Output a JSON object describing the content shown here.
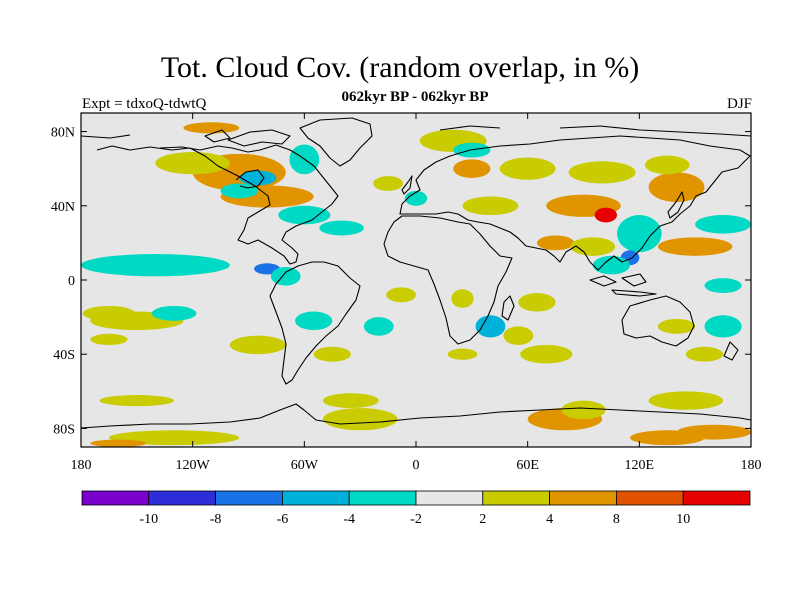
{
  "title": "Tot. Cloud Cov. (random overlap, in %)",
  "subtitle": "062kyr BP - 062kyr BP",
  "left_label": "Expt = tdxoQ-tdwtQ",
  "right_label": "DJF",
  "colors": {
    "background": "#e6e6e6",
    "coast": "#000000",
    "levels": [
      "#7a00cc",
      "#2e2ed9",
      "#1a73e6",
      "#00b2d9",
      "#00d9c3",
      "#e6e6e6",
      "#c9cc00",
      "#e09500",
      "#e05200",
      "#e60000"
    ]
  },
  "chart_data": {
    "type": "heatmap",
    "title": "Tot. Cloud Cov. (random overlap, in %)",
    "x_ticks": [
      "180",
      "120W",
      "60W",
      "0",
      "60E",
      "120E",
      "180"
    ],
    "x_values": [
      -180,
      -120,
      -60,
      0,
      60,
      120,
      180
    ],
    "y_ticks": [
      "80N",
      "40N",
      "0",
      "40S",
      "80S"
    ],
    "y_values": [
      80,
      40,
      0,
      -40,
      -80
    ],
    "lon_range": [
      -180,
      180
    ],
    "lat_range": [
      -90,
      90
    ],
    "colorbar": {
      "labels": [
        "-10",
        "-8",
        "-6",
        "-4",
        "-2",
        "2",
        "4",
        "8",
        "10"
      ],
      "boundaries": [
        -10,
        -8,
        -6,
        -4,
        -2,
        2,
        4,
        8,
        10
      ],
      "bins": 10
    },
    "regions": [
      {
        "lon": -140,
        "lat": 8,
        "rx": 18,
        "ry": 3,
        "value": -6
      },
      {
        "lon": -140,
        "lat": 8,
        "rx": 40,
        "ry": 6,
        "value": -3
      },
      {
        "lon": -165,
        "lat": -18,
        "rx": 14,
        "ry": 4,
        "value": 3
      },
      {
        "lon": -150,
        "lat": -22,
        "rx": 25,
        "ry": 5,
        "value": 3
      },
      {
        "lon": -130,
        "lat": -18,
        "rx": 12,
        "ry": 4,
        "value": -3
      },
      {
        "lon": -165,
        "lat": -32,
        "rx": 10,
        "ry": 3,
        "value": 3
      },
      {
        "lon": -95,
        "lat": 58,
        "rx": 25,
        "ry": 10,
        "value": 5
      },
      {
        "lon": -80,
        "lat": 45,
        "rx": 25,
        "ry": 6,
        "value": 6
      },
      {
        "lon": -120,
        "lat": 63,
        "rx": 20,
        "ry": 6,
        "value": 3
      },
      {
        "lon": -85,
        "lat": 55,
        "rx": 10,
        "ry": 4,
        "value": -5
      },
      {
        "lon": -110,
        "lat": 82,
        "rx": 15,
        "ry": 3,
        "value": 6
      },
      {
        "lon": -60,
        "lat": 65,
        "rx": 8,
        "ry": 8,
        "value": -4
      },
      {
        "lon": -95,
        "lat": 48,
        "rx": 10,
        "ry": 4,
        "value": -3
      },
      {
        "lon": -60,
        "lat": 35,
        "rx": 14,
        "ry": 5,
        "value": -3
      },
      {
        "lon": -40,
        "lat": 28,
        "rx": 12,
        "ry": 4,
        "value": -3
      },
      {
        "lon": -80,
        "lat": 6,
        "rx": 7,
        "ry": 3,
        "value": -8
      },
      {
        "lon": -70,
        "lat": 2,
        "rx": 8,
        "ry": 5,
        "value": -4
      },
      {
        "lon": -55,
        "lat": -22,
        "rx": 10,
        "ry": 5,
        "value": -3
      },
      {
        "lon": -85,
        "lat": -35,
        "rx": 15,
        "ry": 5,
        "value": 3
      },
      {
        "lon": -45,
        "lat": -40,
        "rx": 10,
        "ry": 4,
        "value": 3
      },
      {
        "lon": -150,
        "lat": -65,
        "rx": 20,
        "ry": 3,
        "value": 3
      },
      {
        "lon": -130,
        "lat": -85,
        "rx": 35,
        "ry": 4,
        "value": 3
      },
      {
        "lon": -160,
        "lat": -88,
        "rx": 15,
        "ry": 2,
        "value": 5
      },
      {
        "lon": -15,
        "lat": 52,
        "rx": 8,
        "ry": 4,
        "value": 3
      },
      {
        "lon": 0,
        "lat": 44,
        "rx": 6,
        "ry": 4,
        "value": -3
      },
      {
        "lon": 20,
        "lat": 75,
        "rx": 18,
        "ry": 6,
        "value": 3
      },
      {
        "lon": 30,
        "lat": 60,
        "rx": 10,
        "ry": 5,
        "value": 5
      },
      {
        "lon": 40,
        "lat": 40,
        "rx": 15,
        "ry": 5,
        "value": 3
      },
      {
        "lon": -8,
        "lat": -8,
        "rx": 8,
        "ry": 4,
        "value": 3
      },
      {
        "lon": -20,
        "lat": -25,
        "rx": 8,
        "ry": 5,
        "value": -3
      },
      {
        "lon": -35,
        "lat": -65,
        "rx": 15,
        "ry": 4,
        "value": 3
      },
      {
        "lon": -30,
        "lat": -75,
        "rx": 20,
        "ry": 6,
        "value": 3
      },
      {
        "lon": 25,
        "lat": -10,
        "rx": 6,
        "ry": 5,
        "value": 3
      },
      {
        "lon": 25,
        "lat": -40,
        "rx": 8,
        "ry": 3,
        "value": 3
      },
      {
        "lon": 40,
        "lat": -25,
        "rx": 8,
        "ry": 6,
        "value": -5
      },
      {
        "lon": 65,
        "lat": -12,
        "rx": 10,
        "ry": 5,
        "value": 3
      },
      {
        "lon": 55,
        "lat": -30,
        "rx": 8,
        "ry": 5,
        "value": 3
      },
      {
        "lon": 70,
        "lat": -40,
        "rx": 14,
        "ry": 5,
        "value": 3
      },
      {
        "lon": 80,
        "lat": -75,
        "rx": 20,
        "ry": 6,
        "value": 5
      },
      {
        "lon": 90,
        "lat": -70,
        "rx": 12,
        "ry": 5,
        "value": 3
      },
      {
        "lon": 60,
        "lat": 60,
        "rx": 15,
        "ry": 6,
        "value": 3
      },
      {
        "lon": 30,
        "lat": 70,
        "rx": 10,
        "ry": 4,
        "value": -3
      },
      {
        "lon": 100,
        "lat": 58,
        "rx": 18,
        "ry": 6,
        "value": 3
      },
      {
        "lon": 90,
        "lat": 40,
        "rx": 20,
        "ry": 6,
        "value": 5
      },
      {
        "lon": 102,
        "lat": 35,
        "rx": 6,
        "ry": 4,
        "value": 10
      },
      {
        "lon": 75,
        "lat": 20,
        "rx": 10,
        "ry": 4,
        "value": 5
      },
      {
        "lon": 95,
        "lat": 18,
        "rx": 12,
        "ry": 5,
        "value": 3
      },
      {
        "lon": 120,
        "lat": 25,
        "rx": 12,
        "ry": 10,
        "value": -4
      },
      {
        "lon": 115,
        "lat": 12,
        "rx": 5,
        "ry": 4,
        "value": -7
      },
      {
        "lon": 105,
        "lat": 8,
        "rx": 10,
        "ry": 5,
        "value": -3
      },
      {
        "lon": 140,
        "lat": 50,
        "rx": 15,
        "ry": 8,
        "value": 5
      },
      {
        "lon": 135,
        "lat": 62,
        "rx": 12,
        "ry": 5,
        "value": 3
      },
      {
        "lon": 165,
        "lat": 30,
        "rx": 15,
        "ry": 5,
        "value": -3
      },
      {
        "lon": 150,
        "lat": 18,
        "rx": 20,
        "ry": 5,
        "value": 5
      },
      {
        "lon": 165,
        "lat": -3,
        "rx": 10,
        "ry": 4,
        "value": -3
      },
      {
        "lon": 140,
        "lat": -25,
        "rx": 10,
        "ry": 4,
        "value": 3
      },
      {
        "lon": 155,
        "lat": -40,
        "rx": 10,
        "ry": 4,
        "value": 3
      },
      {
        "lon": 165,
        "lat": -25,
        "rx": 10,
        "ry": 6,
        "value": -4
      },
      {
        "lon": 145,
        "lat": -65,
        "rx": 20,
        "ry": 5,
        "value": 3
      },
      {
        "lon": 160,
        "lat": -82,
        "rx": 20,
        "ry": 4,
        "value": 5
      },
      {
        "lon": 135,
        "lat": -85,
        "rx": 20,
        "ry": 4,
        "value": 5
      }
    ]
  }
}
